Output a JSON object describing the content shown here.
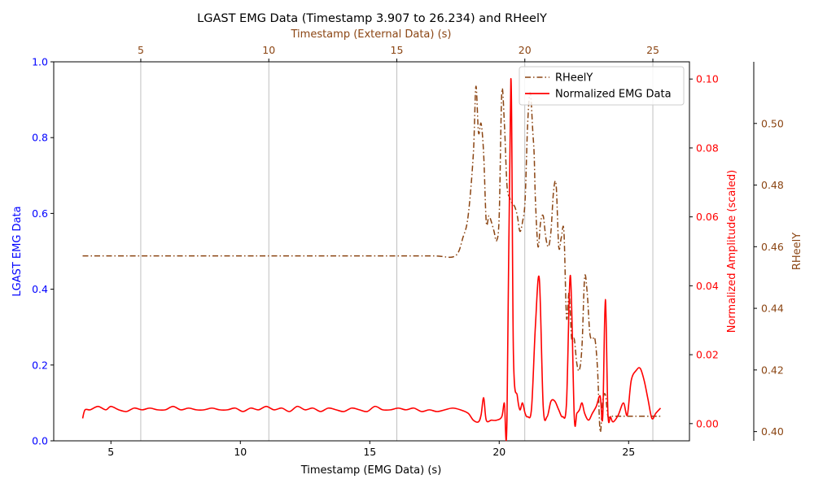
{
  "chart_data": {
    "type": "line",
    "title": "LGAST EMG Data (Timestamp 3.907 to 26.234) and RHeelY",
    "colors": {
      "emg": "#ff0000",
      "rheel": "#8b4513",
      "left_axis": "#0000ff",
      "grid": "#b0b0b0"
    },
    "axes": {
      "bottom": {
        "label": "Timestamp (EMG Data) (s)",
        "range": [
          2.79,
          27.35
        ],
        "ticks": [
          5,
          10,
          15,
          20,
          25
        ],
        "tick_labels": [
          "5",
          "10",
          "15",
          "20",
          "25"
        ]
      },
      "top": {
        "label": "Timestamp (External Data) (s)",
        "range": [
          1.6,
          26.43
        ],
        "ticks": [
          5,
          10,
          15,
          20,
          25
        ],
        "tick_labels": [
          "5",
          "10",
          "15",
          "20",
          "25"
        ],
        "grid": true
      },
      "left": {
        "label": "LGAST EMG Data",
        "range": [
          0.0,
          1.0
        ],
        "ticks": [
          0.0,
          0.2,
          0.4,
          0.6,
          0.8,
          1.0
        ],
        "tick_labels": [
          "0.0",
          "0.2",
          "0.4",
          "0.6",
          "0.8",
          "1.0"
        ]
      },
      "right_emg": {
        "label": "Normalized Amplitude (scaled)",
        "range": [
          -0.005,
          0.105
        ],
        "ticks": [
          0.0,
          0.02,
          0.04,
          0.06,
          0.08,
          0.1
        ],
        "tick_labels": [
          "0.00",
          "0.02",
          "0.04",
          "0.06",
          "0.08",
          "0.10"
        ]
      },
      "right_rheel": {
        "label": "RHeelY",
        "range": [
          0.397,
          0.52
        ],
        "ticks": [
          0.4,
          0.42,
          0.44,
          0.46,
          0.48,
          0.5
        ],
        "tick_labels": [
          "0.40",
          "0.42",
          "0.44",
          "0.46",
          "0.48",
          "0.50"
        ]
      }
    },
    "legend": {
      "position": "top-right",
      "entries": [
        "RHeelY",
        "Normalized EMG Data"
      ]
    },
    "series": [
      {
        "name": "RHeelY",
        "axis": "right_rheel",
        "style": "dashdot",
        "x": [
          3.907,
          6.0,
          8.0,
          10.0,
          12.0,
          14.0,
          16.0,
          17.5,
          18.3,
          18.6,
          18.8,
          19.0,
          19.1,
          19.2,
          19.3,
          19.4,
          19.5,
          19.6,
          19.7,
          19.8,
          19.9,
          20.0,
          20.1,
          20.2,
          20.3,
          20.4,
          20.5,
          20.6,
          20.7,
          20.8,
          20.9,
          21.0,
          21.1,
          21.2,
          21.3,
          21.35,
          21.4,
          21.5,
          21.6,
          21.7,
          21.8,
          21.9,
          22.0,
          22.1,
          22.2,
          22.3,
          22.4,
          22.5,
          22.6,
          22.7,
          22.8,
          22.9,
          23.0,
          23.1,
          23.2,
          23.3,
          23.4,
          23.5,
          23.6,
          23.7,
          23.8,
          23.9,
          24.0,
          24.1,
          24.2,
          24.3,
          24.4,
          24.5,
          24.7,
          24.9,
          25.2,
          25.6,
          26.0,
          26.234
        ],
        "y": [
          0.457,
          0.457,
          0.457,
          0.457,
          0.457,
          0.457,
          0.457,
          0.457,
          0.457,
          0.463,
          0.47,
          0.49,
          0.512,
          0.497,
          0.5,
          0.49,
          0.468,
          0.47,
          0.468,
          0.465,
          0.462,
          0.47,
          0.51,
          0.5,
          0.48,
          0.476,
          0.474,
          0.473,
          0.47,
          0.465,
          0.468,
          0.475,
          0.5,
          0.51,
          0.497,
          0.49,
          0.475,
          0.46,
          0.468,
          0.47,
          0.463,
          0.46,
          0.465,
          0.478,
          0.48,
          0.46,
          0.463,
          0.465,
          0.437,
          0.445,
          0.43,
          0.43,
          0.422,
          0.42,
          0.428,
          0.45,
          0.445,
          0.432,
          0.43,
          0.43,
          0.42,
          0.4,
          0.41,
          0.412,
          0.405,
          0.405,
          0.405,
          0.405,
          0.405,
          0.405,
          0.405,
          0.405,
          0.405,
          0.405
        ]
      },
      {
        "name": "Normalized EMG Data",
        "axis": "right_emg",
        "style": "solid",
        "x": [
          3.907,
          4.0,
          4.2,
          4.5,
          4.8,
          5.0,
          5.3,
          5.6,
          5.9,
          6.2,
          6.5,
          6.8,
          7.1,
          7.4,
          7.7,
          8.0,
          8.3,
          8.6,
          8.9,
          9.2,
          9.5,
          9.8,
          10.1,
          10.4,
          10.7,
          11.0,
          11.3,
          11.6,
          11.9,
          12.2,
          12.5,
          12.8,
          13.1,
          13.4,
          13.7,
          14.0,
          14.3,
          14.6,
          14.9,
          15.2,
          15.5,
          15.8,
          16.1,
          16.4,
          16.7,
          17.0,
          17.3,
          17.6,
          17.9,
          18.2,
          18.5,
          18.8,
          19.0,
          19.2,
          19.3,
          19.4,
          19.5,
          19.7,
          19.9,
          20.1,
          20.2,
          20.3,
          20.45,
          20.55,
          20.7,
          20.8,
          20.9,
          21.0,
          21.1,
          21.25,
          21.4,
          21.55,
          21.7,
          21.85,
          22.0,
          22.15,
          22.3,
          22.45,
          22.6,
          22.75,
          22.9,
          23.0,
          23.1,
          23.2,
          23.3,
          23.45,
          23.6,
          23.75,
          23.9,
          24.0,
          24.1,
          24.2,
          24.3,
          24.4,
          24.6,
          24.8,
          24.95,
          25.1,
          25.3,
          25.45,
          25.6,
          25.75,
          25.9,
          26.05,
          26.234
        ],
        "y": [
          0.0015,
          0.004,
          0.004,
          0.005,
          0.004,
          0.005,
          0.004,
          0.0035,
          0.0045,
          0.004,
          0.0045,
          0.004,
          0.004,
          0.005,
          0.004,
          0.0045,
          0.004,
          0.004,
          0.0045,
          0.004,
          0.004,
          0.0045,
          0.0035,
          0.0045,
          0.004,
          0.005,
          0.004,
          0.0045,
          0.0035,
          0.005,
          0.004,
          0.0045,
          0.0035,
          0.0045,
          0.004,
          0.0035,
          0.0045,
          0.004,
          0.0035,
          0.005,
          0.004,
          0.004,
          0.0045,
          0.004,
          0.0045,
          0.0035,
          0.004,
          0.0035,
          0.004,
          0.0045,
          0.004,
          0.003,
          0.001,
          0.0005,
          0.0025,
          0.0075,
          0.001,
          0.001,
          0.001,
          0.002,
          0.006,
          0.001,
          0.1,
          0.02,
          0.008,
          0.004,
          0.006,
          0.003,
          0.002,
          0.0045,
          0.0285,
          0.042,
          0.005,
          0.002,
          0.0065,
          0.0065,
          0.004,
          0.002,
          0.006,
          0.043,
          0.002,
          0.003,
          0.004,
          0.006,
          0.003,
          0.001,
          0.003,
          0.005,
          0.008,
          0.002,
          0.036,
          0.003,
          0.002,
          0.0005,
          0.0025,
          0.006,
          0.0025,
          0.0125,
          0.0155,
          0.016,
          0.0125,
          0.007,
          0.0015,
          0.003,
          0.0045
        ]
      }
    ]
  }
}
